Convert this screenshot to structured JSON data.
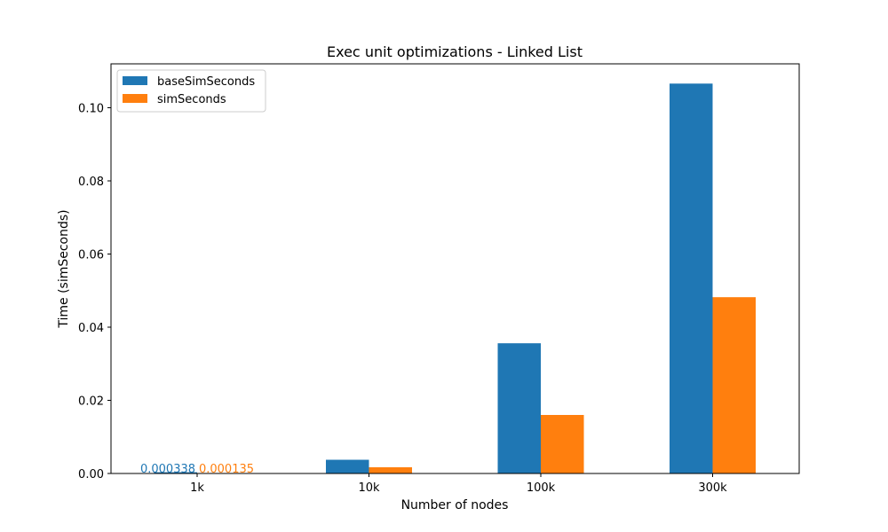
{
  "chart_data": {
    "type": "bar",
    "title": "Exec unit optimizations - Linked List",
    "xlabel": "Number of nodes",
    "ylabel": "Time (simSeconds)",
    "categories": [
      "1k",
      "10k",
      "100k",
      "300k"
    ],
    "series": [
      {
        "name": "baseSimSeconds",
        "color": "#1f77b4",
        "values": [
          0.000338,
          0.00375,
          0.0356,
          0.1066
        ]
      },
      {
        "name": "simSeconds",
        "color": "#ff7f0e",
        "values": [
          0.000135,
          0.0017,
          0.016,
          0.0482
        ]
      }
    ],
    "data_labels": [
      {
        "category": "1k",
        "series": "baseSimSeconds",
        "text": "0.000338",
        "color": "#1f77b4"
      },
      {
        "category": "1k",
        "series": "simSeconds",
        "text": "0.000135",
        "color": "#ff7f0e"
      }
    ],
    "ylim": [
      0,
      0.112
    ],
    "yticks": [
      "0.00",
      "0.02",
      "0.04",
      "0.06",
      "0.08",
      "0.10"
    ],
    "ytick_values": [
      0,
      0.02,
      0.04,
      0.06,
      0.08,
      0.1
    ],
    "grid": false,
    "legend_position": "top-left"
  }
}
